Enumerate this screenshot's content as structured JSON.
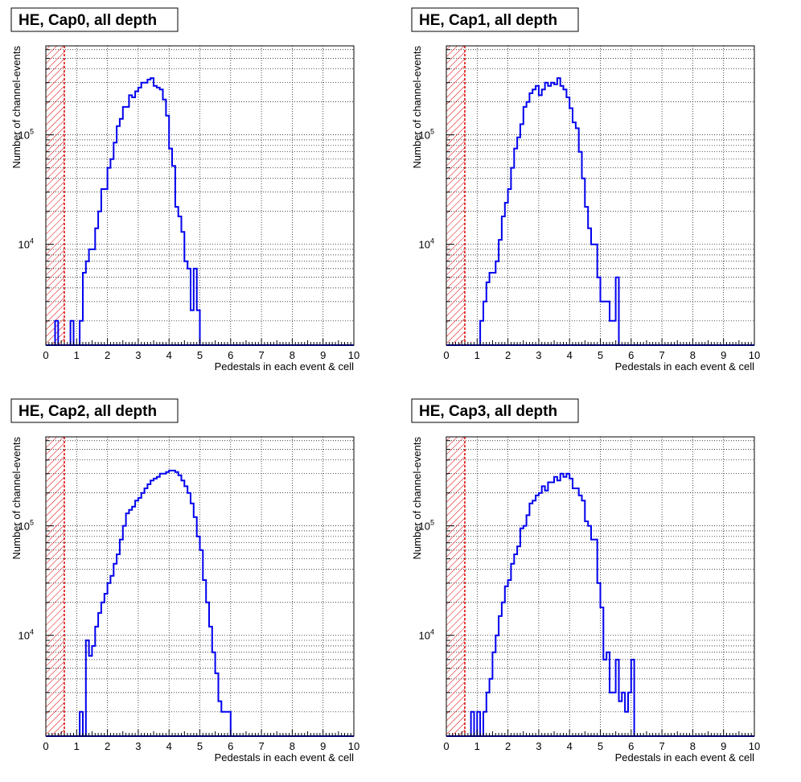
{
  "colors": {
    "histogram": "#0000ee",
    "threshold": "#dd0000",
    "hatch": "#dd0000"
  },
  "chart_data": [
    {
      "type": "histogram",
      "title": "HE, Cap0, all depth",
      "xlabel": "Pedestals in each event & cell",
      "ylabel": "Number of channel-events",
      "y_scale": "log",
      "grid": true,
      "xlim": [
        0,
        10
      ],
      "ylim": [
        1200,
        650000
      ],
      "xticks": [
        "0",
        "1",
        "2",
        "3",
        "4",
        "5",
        "6",
        "7",
        "8",
        "9",
        "10"
      ],
      "yticks": [
        {
          "value": 10000,
          "base": "10",
          "exp": "4"
        },
        {
          "value": 100000,
          "base": "10",
          "exp": "5"
        }
      ],
      "threshold": 0.6,
      "bin_width": 0.1,
      "x0": 0,
      "counts": [
        0,
        0,
        0,
        2000,
        0,
        0,
        0,
        0,
        2000,
        0,
        0,
        2000,
        5500,
        7000,
        9000,
        9000,
        14000,
        20000,
        32000,
        32000,
        50000,
        60000,
        85000,
        120000,
        140000,
        180000,
        180000,
        230000,
        220000,
        250000,
        270000,
        300000,
        300000,
        320000,
        330000,
        280000,
        270000,
        260000,
        210000,
        150000,
        75000,
        52000,
        22000,
        18000,
        13000,
        7000,
        6000,
        2500,
        6000,
        2500,
        0,
        0,
        0,
        0,
        0,
        0,
        0,
        0,
        0,
        0,
        0,
        0,
        0,
        0,
        0,
        0,
        0,
        0,
        0,
        0,
        0,
        0,
        0,
        0,
        0,
        0,
        0,
        0,
        0,
        0,
        0,
        0,
        0,
        0,
        0,
        0,
        0,
        0,
        0,
        0,
        0,
        0,
        0,
        0,
        0,
        0,
        0,
        0,
        0,
        0
      ]
    },
    {
      "type": "histogram",
      "title": "HE, Cap1, all depth",
      "xlabel": "Pedestals in each event & cell",
      "ylabel": "Number of channel-events",
      "y_scale": "log",
      "grid": true,
      "xlim": [
        0,
        10
      ],
      "ylim": [
        1200,
        650000
      ],
      "xticks": [
        "0",
        "1",
        "2",
        "3",
        "4",
        "5",
        "6",
        "7",
        "8",
        "9",
        "10"
      ],
      "yticks": [
        {
          "value": 10000,
          "base": "10",
          "exp": "4"
        },
        {
          "value": 100000,
          "base": "10",
          "exp": "5"
        }
      ],
      "threshold": 0.6,
      "bin_width": 0.1,
      "x0": 0,
      "counts": [
        0,
        0,
        0,
        0,
        0,
        0,
        0,
        0,
        0,
        0,
        0,
        2000,
        3000,
        4500,
        5500,
        5500,
        7000,
        11000,
        18000,
        24000,
        32000,
        50000,
        75000,
        95000,
        125000,
        180000,
        200000,
        240000,
        260000,
        280000,
        230000,
        260000,
        300000,
        280000,
        300000,
        290000,
        330000,
        280000,
        260000,
        220000,
        175000,
        130000,
        115000,
        70000,
        40000,
        22000,
        14000,
        10000,
        10000,
        5000,
        3000,
        3000,
        3000,
        2000,
        2000,
        5000,
        0,
        0,
        0,
        0,
        0,
        0,
        0,
        0,
        0,
        0,
        0,
        0,
        0,
        0,
        0,
        0,
        0,
        0,
        0,
        0,
        0,
        0,
        0,
        0,
        0,
        0,
        0,
        0,
        0,
        0,
        0,
        0,
        0,
        0,
        0,
        0,
        0,
        0,
        0,
        0,
        0,
        0,
        0,
        0
      ]
    },
    {
      "type": "histogram",
      "title": "HE, Cap2, all depth",
      "xlabel": "Pedestals in each event & cell",
      "ylabel": "Number of channel-events",
      "y_scale": "log",
      "grid": true,
      "xlim": [
        0,
        10
      ],
      "ylim": [
        1200,
        650000
      ],
      "xticks": [
        "0",
        "1",
        "2",
        "3",
        "4",
        "5",
        "6",
        "7",
        "8",
        "9",
        "10"
      ],
      "yticks": [
        {
          "value": 10000,
          "base": "10",
          "exp": "4"
        },
        {
          "value": 100000,
          "base": "10",
          "exp": "5"
        }
      ],
      "threshold": 0.6,
      "bin_width": 0.1,
      "x0": 0,
      "counts": [
        0,
        0,
        0,
        0,
        0,
        0,
        0,
        0,
        0,
        0,
        0,
        2000,
        0,
        9000,
        6500,
        8000,
        12000,
        16000,
        20000,
        24000,
        30000,
        35000,
        45000,
        55000,
        75000,
        100000,
        130000,
        140000,
        150000,
        170000,
        180000,
        200000,
        220000,
        240000,
        260000,
        270000,
        280000,
        300000,
        300000,
        310000,
        320000,
        320000,
        310000,
        290000,
        260000,
        230000,
        200000,
        160000,
        120000,
        80000,
        60000,
        32000,
        20000,
        12000,
        7000,
        4500,
        2500,
        2000,
        2000,
        2000,
        0,
        0,
        0,
        0,
        0,
        0,
        0,
        0,
        0,
        0,
        0,
        0,
        0,
        0,
        0,
        0,
        0,
        0,
        0,
        0,
        0,
        0,
        0,
        0,
        0,
        0,
        0,
        0,
        0,
        0,
        0,
        0,
        0,
        0,
        0,
        0,
        0,
        0,
        0,
        0
      ]
    },
    {
      "type": "histogram",
      "title": "HE, Cap3, all depth",
      "xlabel": "Pedestals in each event & cell",
      "ylabel": "Number of channel-events",
      "y_scale": "log",
      "grid": true,
      "xlim": [
        0,
        10
      ],
      "ylim": [
        1200,
        650000
      ],
      "xticks": [
        "0",
        "1",
        "2",
        "3",
        "4",
        "5",
        "6",
        "7",
        "8",
        "9",
        "10"
      ],
      "yticks": [
        {
          "value": 10000,
          "base": "10",
          "exp": "4"
        },
        {
          "value": 100000,
          "base": "10",
          "exp": "5"
        }
      ],
      "threshold": 0.6,
      "bin_width": 0.1,
      "x0": 0,
      "counts": [
        0,
        0,
        0,
        0,
        0,
        0,
        0,
        0,
        2000,
        0,
        2000,
        0,
        2000,
        3000,
        4000,
        7000,
        10000,
        15000,
        20000,
        28000,
        32000,
        45000,
        55000,
        65000,
        95000,
        100000,
        125000,
        160000,
        170000,
        190000,
        200000,
        230000,
        210000,
        250000,
        250000,
        280000,
        260000,
        300000,
        280000,
        300000,
        270000,
        220000,
        220000,
        190000,
        170000,
        110000,
        100000,
        75000,
        75000,
        30000,
        18000,
        6000,
        7000,
        3000,
        3000,
        6000,
        2500,
        3000,
        2000,
        3000,
        6000,
        0,
        0,
        0,
        0,
        0,
        0,
        0,
        0,
        0,
        0,
        0,
        0,
        0,
        0,
        0,
        0,
        0,
        0,
        0,
        0,
        0,
        0,
        0,
        0,
        0,
        0,
        0,
        0,
        0,
        0,
        0,
        0,
        0,
        0,
        0,
        0,
        0,
        0,
        0,
        0,
        0
      ]
    }
  ]
}
